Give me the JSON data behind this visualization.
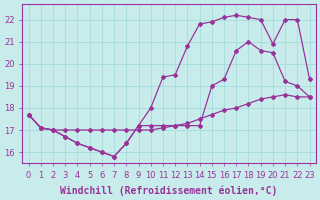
{
  "xlabel": "Windchill (Refroidissement éolien,°C)",
  "bg_color": "#c8ecec",
  "grid_color": "#aadddd",
  "line_color": "#993399",
  "xlim": [
    -0.5,
    23.5
  ],
  "ylim": [
    15.5,
    22.7
  ],
  "xticks": [
    0,
    1,
    2,
    3,
    4,
    5,
    6,
    7,
    8,
    9,
    10,
    11,
    12,
    13,
    14,
    15,
    16,
    17,
    18,
    19,
    20,
    21,
    22,
    23
  ],
  "yticks": [
    16,
    17,
    18,
    19,
    20,
    21,
    22
  ],
  "line1_x": [
    0,
    1,
    2,
    3,
    4,
    5,
    6,
    7,
    8,
    9,
    10,
    11,
    12,
    13,
    14,
    15,
    16,
    17,
    18,
    19,
    20,
    21,
    22,
    23
  ],
  "line1_y": [
    17.7,
    17.1,
    17.0,
    17.0,
    17.0,
    17.0,
    17.0,
    17.0,
    17.0,
    17.0,
    17.0,
    17.1,
    17.2,
    17.3,
    17.5,
    17.7,
    17.9,
    18.0,
    18.2,
    18.4,
    18.5,
    18.6,
    18.5,
    18.5
  ],
  "line2_x": [
    0,
    1,
    2,
    3,
    4,
    5,
    6,
    7,
    8,
    9,
    10,
    11,
    12,
    13,
    14,
    15,
    16,
    17,
    18,
    19,
    20,
    21,
    22,
    23
  ],
  "line2_y": [
    17.7,
    17.1,
    17.0,
    16.7,
    16.4,
    16.2,
    16.0,
    15.8,
    16.4,
    17.2,
    18.0,
    19.4,
    19.5,
    20.8,
    21.8,
    21.9,
    22.1,
    22.2,
    22.1,
    22.0,
    20.9,
    22.0,
    22.0,
    19.3
  ],
  "line3_x": [
    0,
    1,
    2,
    3,
    4,
    5,
    6,
    7,
    8,
    9,
    10,
    11,
    12,
    13,
    14,
    15,
    16,
    17,
    18,
    19,
    20,
    21,
    22,
    23
  ],
  "line3_y": [
    17.7,
    17.1,
    17.0,
    16.7,
    16.4,
    16.2,
    16.0,
    15.8,
    16.4,
    17.2,
    17.2,
    17.2,
    17.2,
    17.2,
    17.2,
    19.0,
    19.3,
    20.6,
    21.0,
    20.6,
    20.5,
    19.2,
    19.0,
    18.5
  ],
  "marker": "D",
  "marker_size": 2.0,
  "line_width": 0.9,
  "font_family": "monospace",
  "xlabel_fontsize": 7,
  "tick_fontsize": 6
}
